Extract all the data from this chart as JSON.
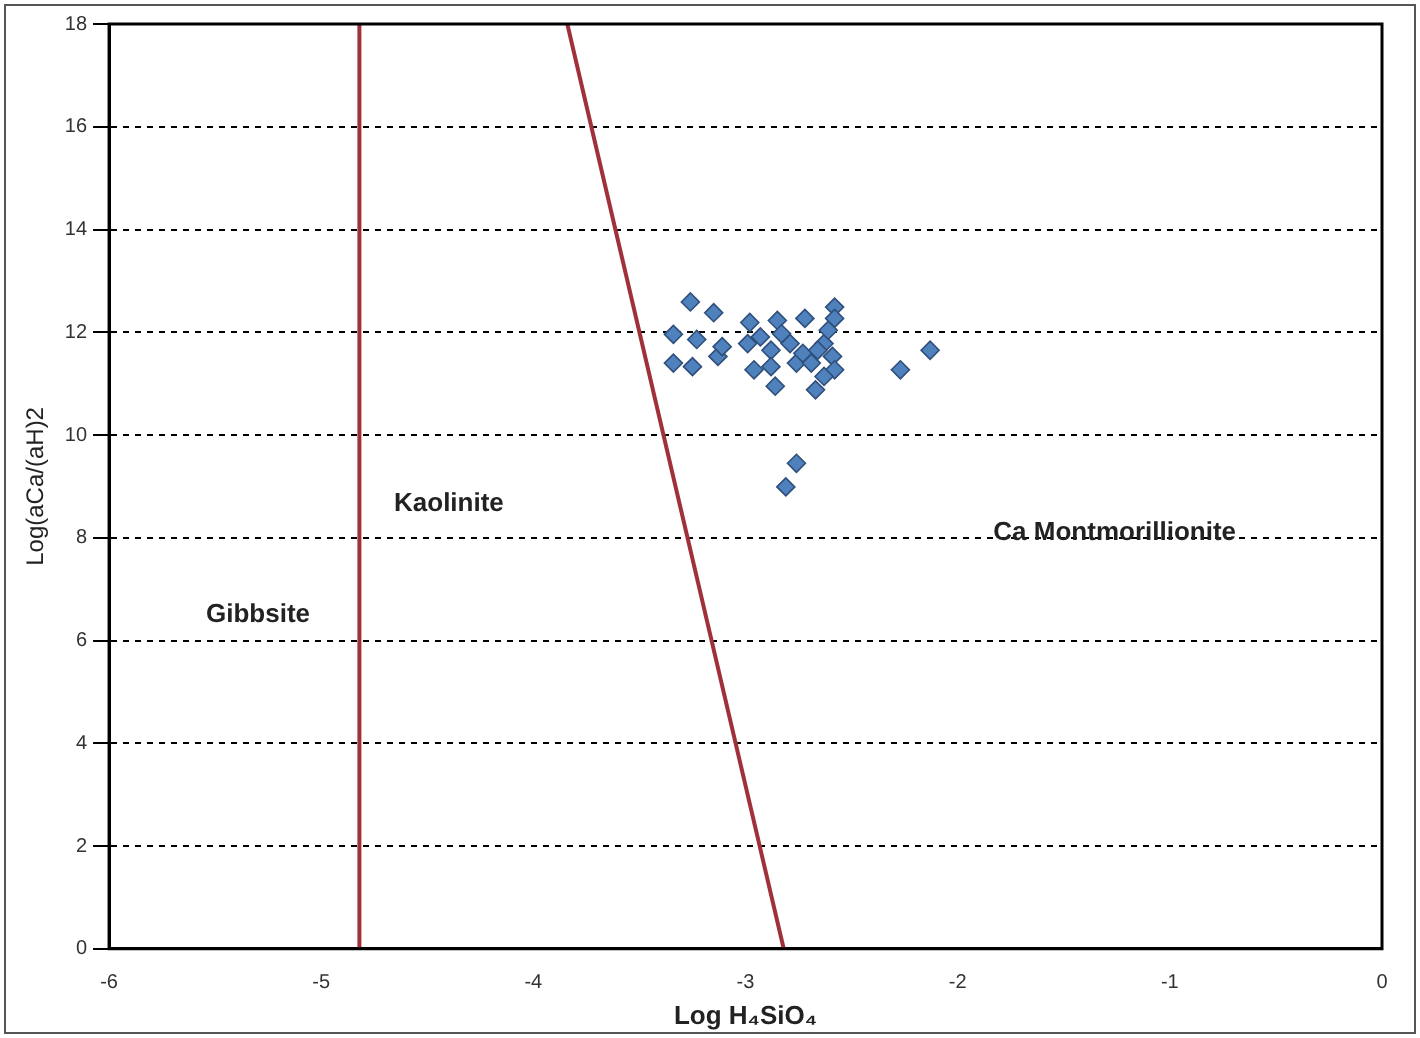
{
  "chart_data": {
    "type": "scatter",
    "xlabel": "Log H₄SiO₄",
    "ylabel": "Log(aCa/(aH)2",
    "xlim": [
      -6,
      0
    ],
    "xticks": [
      -6,
      -5,
      -4,
      -3,
      -2,
      -1,
      0
    ],
    "ylim": [
      0,
      18
    ],
    "yticks": [
      0,
      2,
      4,
      6,
      8,
      10,
      12,
      14,
      16,
      18
    ],
    "grid": "y",
    "legend": false,
    "marker": "diamond",
    "series": [
      {
        "type": "line",
        "color": "#a0303a",
        "x": [
          -4.82,
          -4.82
        ],
        "values": [
          0,
          18
        ],
        "marker": "none"
      },
      {
        "type": "line",
        "color": "#a0303a",
        "x": [
          -3.84,
          -2.82
        ],
        "values": [
          18,
          0
        ],
        "marker": "none"
      },
      {
        "color": "#4f81bd",
        "x": [
          -3.26,
          -3.15,
          -3.34,
          -3.23,
          -3.34,
          -3.25,
          -3.13,
          -3.11,
          -2.98,
          -2.85,
          -2.72,
          -2.58,
          -2.58,
          -2.93,
          -2.99,
          -2.88,
          -2.83,
          -2.79,
          -2.76,
          -2.69,
          -2.63,
          -2.61,
          -2.59,
          -2.58,
          -2.63,
          -2.67,
          -2.86,
          -2.96,
          -2.88,
          -2.73,
          -2.66,
          -2.27,
          -2.13,
          -2.76,
          -2.81
        ],
        "values": [
          12.59,
          12.38,
          11.96,
          11.86,
          11.4,
          11.33,
          11.53,
          11.72,
          12.19,
          12.23,
          12.27,
          12.49,
          12.27,
          11.91,
          11.78,
          11.65,
          11.97,
          11.78,
          11.4,
          11.4,
          11.78,
          12.04,
          11.53,
          11.27,
          11.14,
          10.88,
          10.95,
          11.27,
          11.33,
          11.59,
          11.65,
          11.27,
          11.65,
          9.45,
          8.99
        ]
      }
    ],
    "annotations": [
      "Gibbsite",
      "Kaolinite",
      "Ca Montmorillionite"
    ]
  }
}
